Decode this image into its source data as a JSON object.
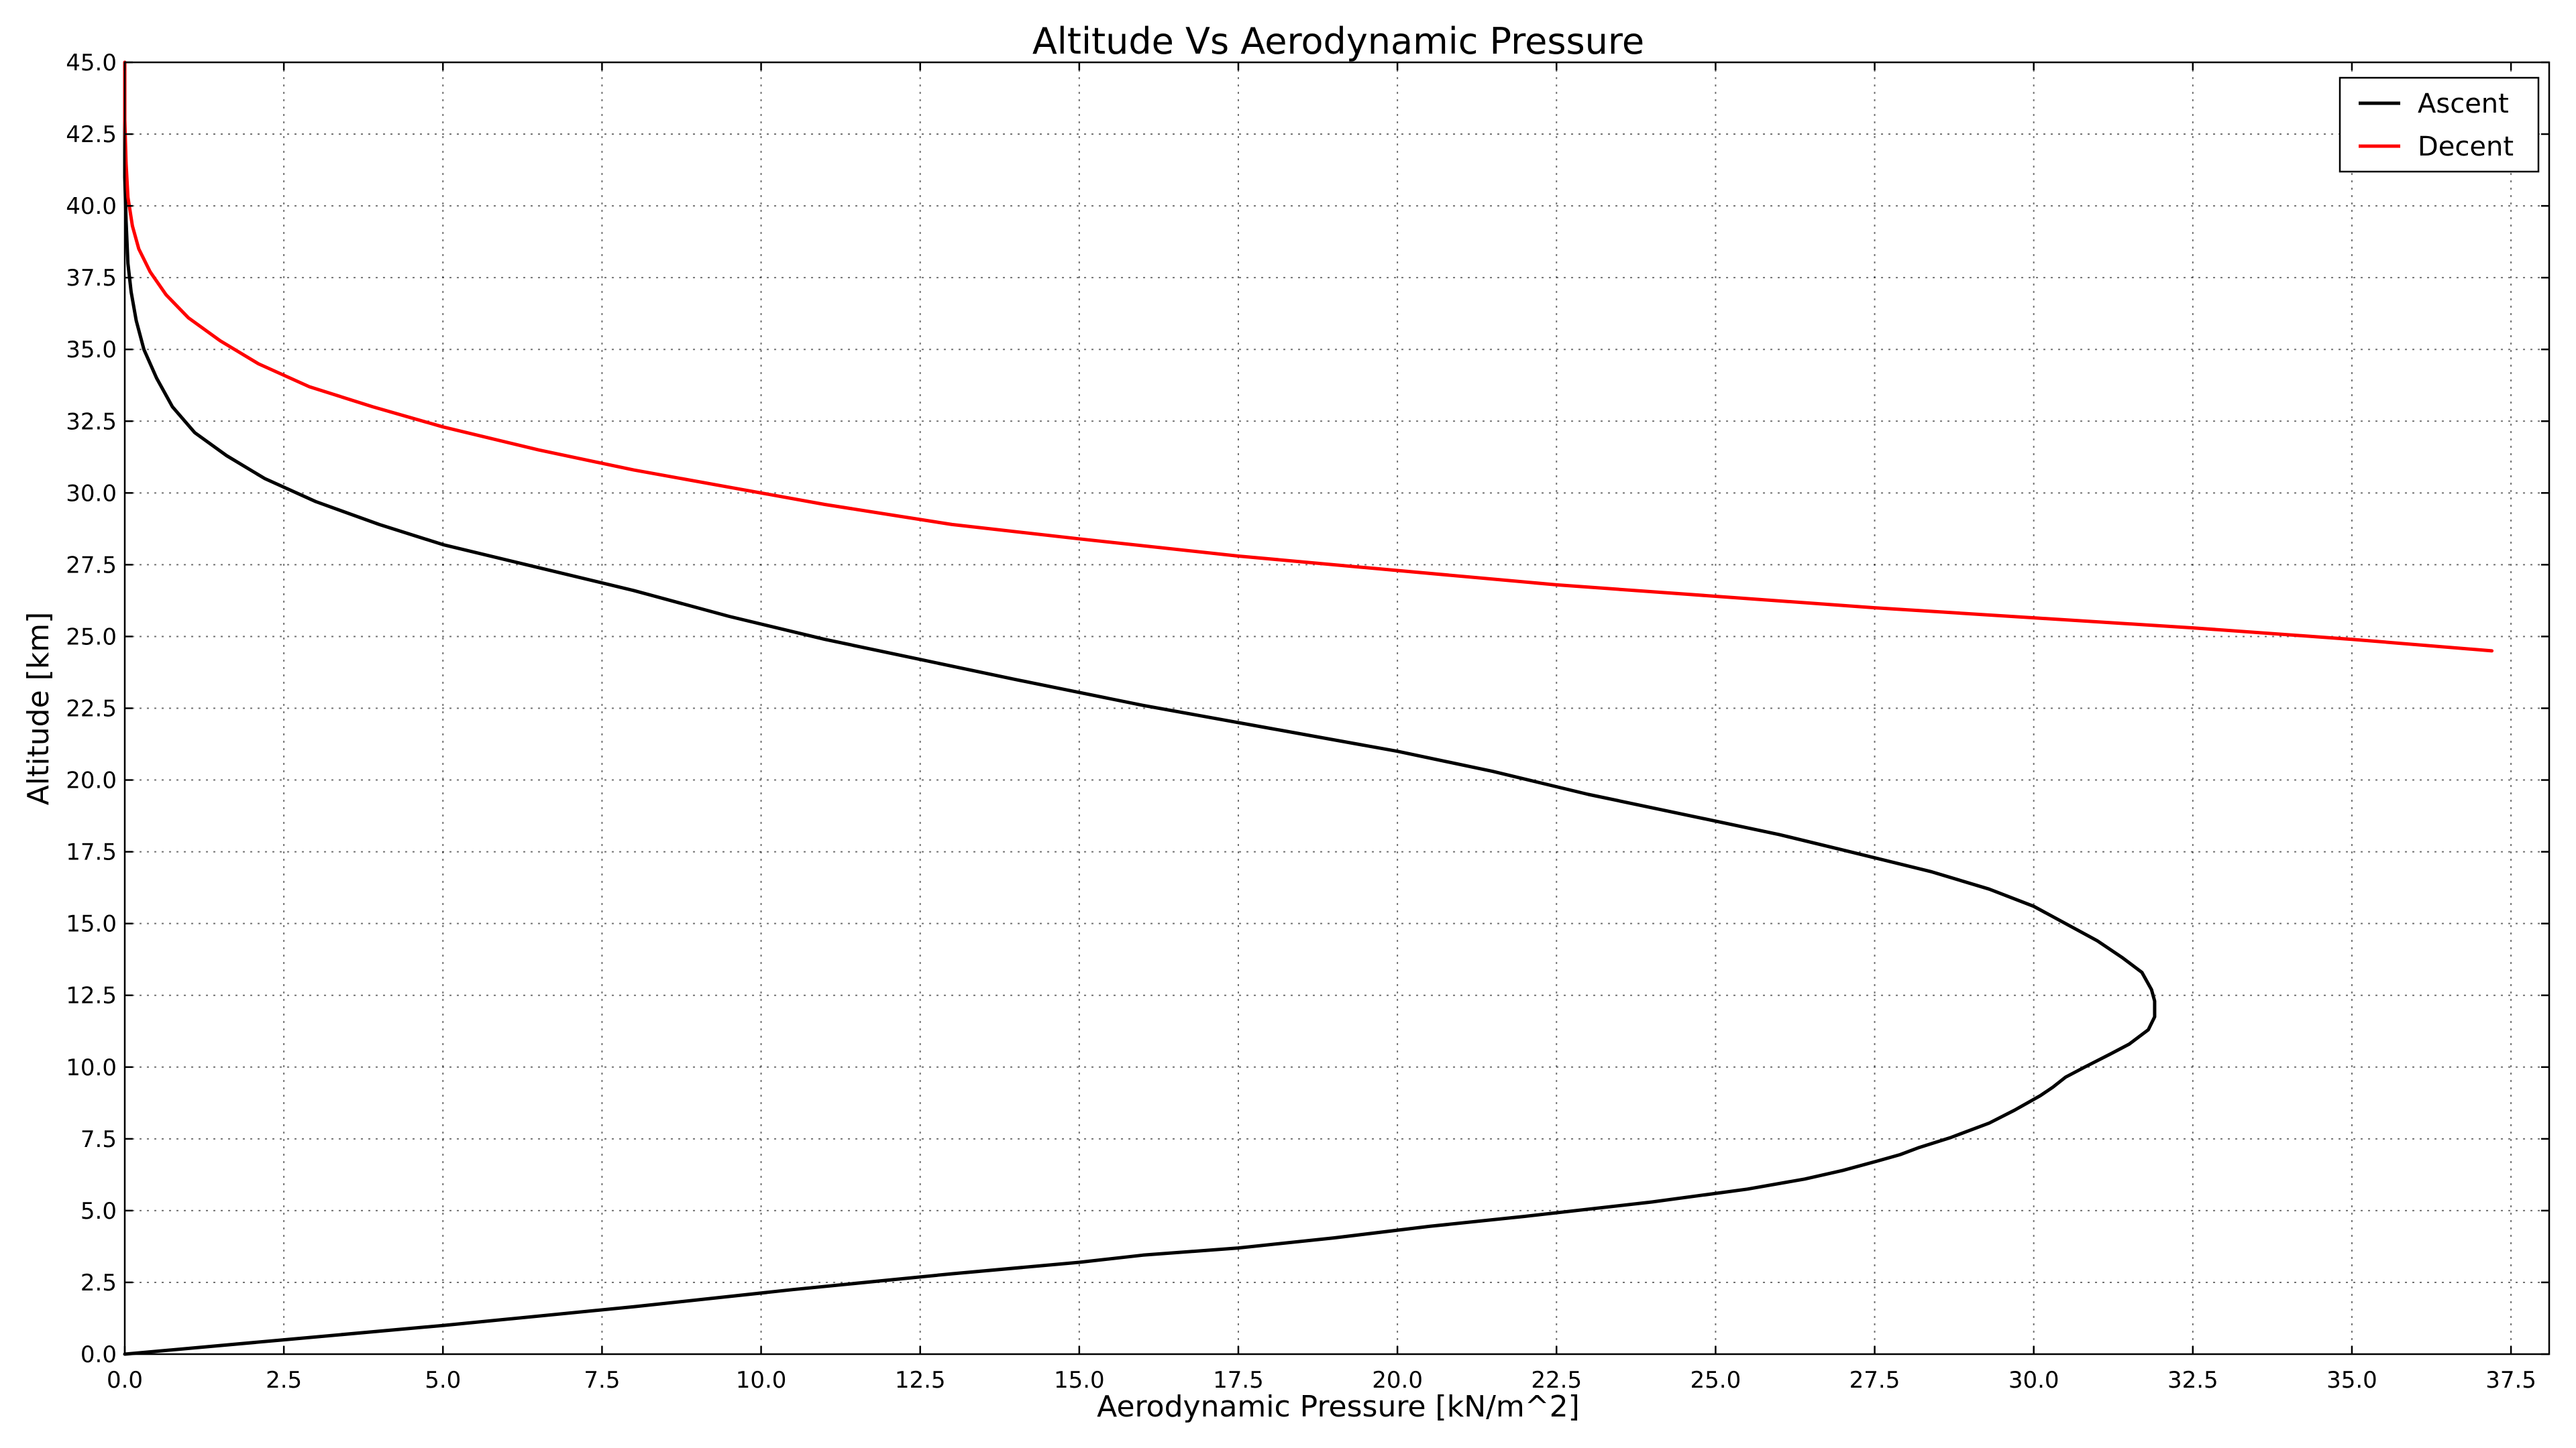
{
  "chart_data": {
    "type": "line",
    "title": "Altitude Vs Aerodynamic Pressure",
    "xlabel": "Aerodynamic Pressure [kN/m^2]",
    "ylabel": "Altitude [km]",
    "xlim": [
      0,
      38.1
    ],
    "ylim": [
      0,
      45
    ],
    "xticks": [
      "0.0",
      "2.5",
      "5.0",
      "7.5",
      "10.0",
      "12.5",
      "15.0",
      "17.5",
      "20.0",
      "22.5",
      "25.0",
      "27.5",
      "30.0",
      "32.5",
      "35.0",
      "37.5"
    ],
    "yticks": [
      "0.0",
      "2.5",
      "5.0",
      "7.5",
      "10.0",
      "12.5",
      "15.0",
      "17.5",
      "20.0",
      "22.5",
      "25.0",
      "27.5",
      "30.0",
      "32.5",
      "35.0",
      "37.5",
      "40.0",
      "42.5",
      "45.0"
    ],
    "grid": true,
    "legend_position": "top-right",
    "series": [
      {
        "name": "Ascent",
        "color": "#000000",
        "points": [
          [
            0.0,
            0.0
          ],
          [
            2.5,
            0.5
          ],
          [
            5.0,
            1.0
          ],
          [
            8.0,
            1.65
          ],
          [
            10.5,
            2.25
          ],
          [
            13.0,
            2.8
          ],
          [
            15.0,
            3.2
          ],
          [
            16.0,
            3.45
          ],
          [
            17.5,
            3.7
          ],
          [
            19.0,
            4.05
          ],
          [
            20.5,
            4.45
          ],
          [
            22.0,
            4.8
          ],
          [
            24.0,
            5.3
          ],
          [
            25.5,
            5.75
          ],
          [
            26.4,
            6.1
          ],
          [
            27.0,
            6.4
          ],
          [
            27.5,
            6.7
          ],
          [
            27.9,
            6.95
          ],
          [
            28.2,
            7.2
          ],
          [
            28.7,
            7.55
          ],
          [
            29.3,
            8.05
          ],
          [
            29.7,
            8.5
          ],
          [
            30.1,
            9.0
          ],
          [
            30.3,
            9.3
          ],
          [
            30.5,
            9.65
          ],
          [
            30.8,
            10.0
          ],
          [
            31.2,
            10.45
          ],
          [
            31.5,
            10.8
          ],
          [
            31.8,
            11.3
          ],
          [
            31.9,
            11.75
          ],
          [
            31.9,
            12.3
          ],
          [
            31.85,
            12.7
          ],
          [
            31.7,
            13.3
          ],
          [
            31.4,
            13.8
          ],
          [
            31.0,
            14.4
          ],
          [
            30.5,
            15.0
          ],
          [
            30.0,
            15.6
          ],
          [
            29.3,
            16.2
          ],
          [
            28.4,
            16.8
          ],
          [
            27.3,
            17.4
          ],
          [
            26.0,
            18.1
          ],
          [
            24.5,
            18.8
          ],
          [
            23.0,
            19.5
          ],
          [
            21.5,
            20.3
          ],
          [
            20.0,
            21.0
          ],
          [
            18.0,
            21.8
          ],
          [
            16.0,
            22.6
          ],
          [
            14.0,
            23.5
          ],
          [
            12.5,
            24.2
          ],
          [
            11.0,
            24.9
          ],
          [
            9.5,
            25.7
          ],
          [
            8.0,
            26.6
          ],
          [
            6.5,
            27.4
          ],
          [
            5.0,
            28.2
          ],
          [
            4.0,
            28.9
          ],
          [
            3.0,
            29.7
          ],
          [
            2.2,
            30.5
          ],
          [
            1.6,
            31.3
          ],
          [
            1.1,
            32.1
          ],
          [
            0.75,
            33.0
          ],
          [
            0.5,
            34.0
          ],
          [
            0.3,
            35.0
          ],
          [
            0.18,
            36.0
          ],
          [
            0.1,
            37.0
          ],
          [
            0.05,
            38.0
          ],
          [
            0.02,
            39.5
          ],
          [
            0.0,
            41.0
          ],
          [
            0.0,
            45.0
          ]
        ]
      },
      {
        "name": "Decent",
        "color": "#ff0000",
        "points": [
          [
            37.2,
            24.5
          ],
          [
            35.0,
            24.9
          ],
          [
            32.5,
            25.3
          ],
          [
            30.0,
            25.65
          ],
          [
            27.5,
            26.0
          ],
          [
            25.0,
            26.4
          ],
          [
            22.5,
            26.8
          ],
          [
            20.0,
            27.3
          ],
          [
            17.5,
            27.8
          ],
          [
            15.0,
            28.4
          ],
          [
            13.0,
            28.9
          ],
          [
            11.0,
            29.6
          ],
          [
            9.5,
            30.2
          ],
          [
            8.0,
            30.8
          ],
          [
            6.5,
            31.5
          ],
          [
            5.0,
            32.3
          ],
          [
            3.9,
            33.0
          ],
          [
            2.9,
            33.7
          ],
          [
            2.1,
            34.5
          ],
          [
            1.5,
            35.3
          ],
          [
            1.0,
            36.1
          ],
          [
            0.65,
            36.9
          ],
          [
            0.4,
            37.7
          ],
          [
            0.22,
            38.5
          ],
          [
            0.12,
            39.3
          ],
          [
            0.05,
            40.3
          ],
          [
            0.02,
            41.5
          ],
          [
            0.0,
            43.0
          ],
          [
            0.0,
            45.0
          ]
        ]
      }
    ]
  }
}
